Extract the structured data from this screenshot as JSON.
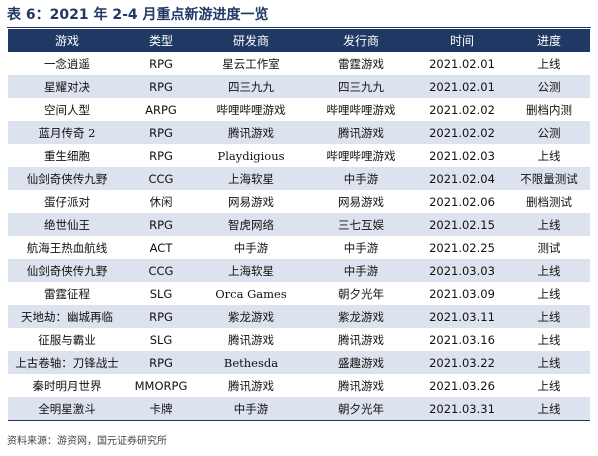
{
  "title": "表 6：2021 年 2-4 月重点新游进度一览",
  "headers": [
    "游戏",
    "类型",
    "研发商",
    "发行商",
    "时间",
    "进度"
  ],
  "rows": [
    [
      "一念逍遥",
      "RPG",
      "星云工作室",
      "雷霆游戏",
      "2021.02.01",
      "上线"
    ],
    [
      "星耀对决",
      "RPG",
      "四三九九",
      "四三九九",
      "2021.02.01",
      "公测"
    ],
    [
      "空间人型",
      "ARPG",
      "哔哩哔哩游戏",
      "哔哩哔哩游戏",
      "2021.02.02",
      "删档内测"
    ],
    [
      "蓝月传奇 2",
      "RPG",
      "腾讯游戏",
      "腾讯游戏",
      "2021.02.02",
      "公测"
    ],
    [
      "重生细胞",
      "RPG",
      "Playdigious",
      "哔哩哔哩游戏",
      "2021.02.03",
      "上线"
    ],
    [
      "仙剑奇侠传九野",
      "CCG",
      "上海软星",
      "中手游",
      "2021.02.04",
      "不限量测试"
    ],
    [
      "蛋仔派对",
      "休闲",
      "网易游戏",
      "网易游戏",
      "2021.02.06",
      "删档测试"
    ],
    [
      "绝世仙王",
      "RPG",
      "智虎网络",
      "三七互娱",
      "2021.02.15",
      "上线"
    ],
    [
      "航海王热血航线",
      "ACT",
      "中手游",
      "中手游",
      "2021.02.25",
      "测试"
    ],
    [
      "仙剑奇侠传九野",
      "CCG",
      "上海软星",
      "中手游",
      "2021.03.03",
      "上线"
    ],
    [
      "雷霆征程",
      "SLG",
      "Orca Games",
      "朝夕光年",
      "2021.03.09",
      "上线"
    ],
    [
      "天地劫：幽城再临",
      "RPG",
      "紫龙游戏",
      "紫龙游戏",
      "2021.03.11",
      "上线"
    ],
    [
      "征服与霸业",
      "SLG",
      "腾讯游戏",
      "腾讯游戏",
      "2021.03.16",
      "上线"
    ],
    [
      "上古卷轴：刀锋战士",
      "RPG",
      "Bethesda",
      "盛趣游戏",
      "2021.03.22",
      "上线"
    ],
    [
      "秦时明月世界",
      "MMORPG",
      "腾讯游戏",
      "腾讯游戏",
      "2021.03.26",
      "上线"
    ],
    [
      "全明星激斗",
      "卡牌",
      "中手游",
      "朝夕光年",
      "2021.03.31",
      "上线"
    ]
  ],
  "source": "资料来源：游资网，国元证券研究所"
}
